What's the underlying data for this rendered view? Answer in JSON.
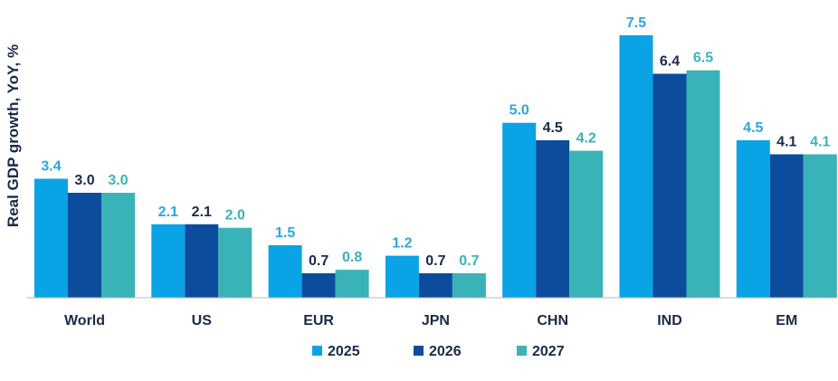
{
  "chart_data": {
    "type": "bar",
    "ylabel": "Real GDP growth, YoY, %",
    "categories": [
      "World",
      "US",
      "EUR",
      "JPN",
      "CHN",
      "IND",
      "EM"
    ],
    "series": [
      {
        "name": "2025",
        "color": "#0aa3e6",
        "label_color": "#2ba6e0",
        "values": [
          3.4,
          2.1,
          1.5,
          1.2,
          5.0,
          7.5,
          4.5
        ]
      },
      {
        "name": "2026",
        "color": "#0b4d9c",
        "label_color": "#1b2a4a",
        "values": [
          3.0,
          2.1,
          0.7,
          0.7,
          4.5,
          6.4,
          4.1
        ]
      },
      {
        "name": "2027",
        "color": "#3ab3b8",
        "label_color": "#3ab3b8",
        "values": [
          3.0,
          2.0,
          0.8,
          0.7,
          4.2,
          6.5,
          4.1
        ]
      }
    ],
    "ylim": [
      0,
      7.5
    ],
    "grid": false,
    "legend": "bottom-center"
  }
}
